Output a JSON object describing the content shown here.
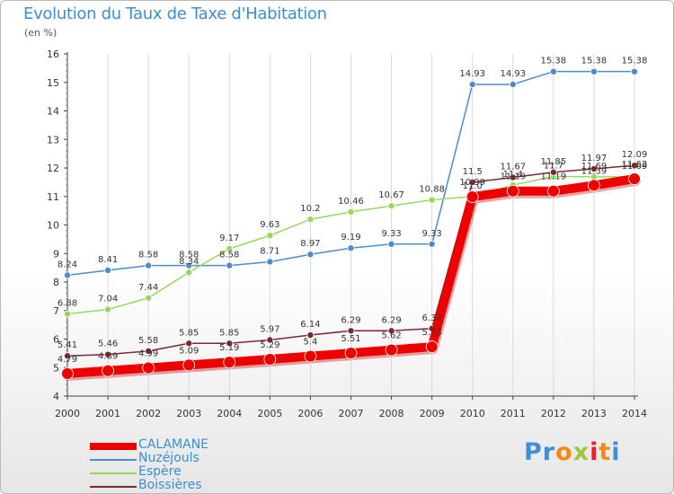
{
  "chart_title": "Evolution du Taux de Taxe d'Habitation",
  "unit_label": "(en %)",
  "logo": {
    "text": "Proxiti",
    "letters": [
      "P",
      "r",
      "o",
      "x",
      "i",
      "t",
      "i"
    ],
    "colors": [
      "#3f8fd6",
      "#3f8fd6",
      "#f28a1a",
      "#a0c53a",
      "#e8222a",
      "#f28a1a",
      "#3f8fd6"
    ]
  },
  "chart_data": {
    "type": "line",
    "title": "Evolution du Taux de Taxe d'Habitation",
    "ylabel": "(en %)",
    "xlabel": "",
    "x": [
      "2000",
      "2001",
      "2002",
      "2003",
      "2004",
      "2005",
      "2006",
      "2007",
      "2008",
      "2009",
      "2010",
      "2011",
      "2012",
      "2013",
      "2014"
    ],
    "ylim": [
      4,
      16
    ],
    "yticks": [
      "4",
      "5",
      "6",
      "7",
      "8",
      "9",
      "10",
      "11",
      "12",
      "13",
      "14",
      "15",
      "16"
    ],
    "grid": "vertical",
    "legend_position": "bottom-left",
    "series": [
      {
        "name": "CALAMANE",
        "color": "#ee0000",
        "values": [
          4.79,
          4.89,
          4.99,
          5.09,
          5.19,
          5.29,
          5.4,
          5.51,
          5.62,
          5.73,
          10.99,
          11.19,
          11.19,
          11.39,
          11.62
        ],
        "labels": [
          "4.79",
          "4.89",
          "4.99",
          "5.09",
          "5.19",
          "5.29",
          "5.4",
          "5.51",
          "5.62",
          "5.73",
          "10.99",
          "11.19",
          "11.19",
          "11.39",
          "11.62"
        ]
      },
      {
        "name": "Nuzéjouls",
        "color": "#4b8ccf",
        "values": [
          8.24,
          8.41,
          8.58,
          8.58,
          8.58,
          8.71,
          8.97,
          9.19,
          9.33,
          9.33,
          14.93,
          14.93,
          15.38,
          15.38,
          15.38
        ],
        "labels": [
          "8.24",
          "8.41",
          "8.58",
          "8.58",
          "8.58",
          "8.71",
          "8.97",
          "9.19",
          "9.33",
          "9.33",
          "14.93",
          "14.93",
          "15.38",
          "15.38",
          "15.38"
        ]
      },
      {
        "name": "Espère",
        "color": "#97d85a",
        "values": [
          6.88,
          7.04,
          7.44,
          8.34,
          9.17,
          9.63,
          10.2,
          10.46,
          10.67,
          10.88,
          11.0,
          11.4,
          11.7,
          11.69,
          11.69
        ],
        "labels": [
          "6.88",
          "7.04",
          "7.44",
          "8.34",
          "9.17",
          "9.63",
          "10.2",
          "10.46",
          "10.67",
          "10.88",
          "11.0",
          "11.4",
          "11.7",
          "11.69",
          "11.69"
        ]
      },
      {
        "name": "Boissières",
        "color": "#7a2a2e",
        "values": [
          5.41,
          5.46,
          5.58,
          5.85,
          5.85,
          5.97,
          6.14,
          6.29,
          6.29,
          6.37,
          11.5,
          11.67,
          11.85,
          11.97,
          12.09
        ],
        "labels": [
          "5.41",
          "5.46",
          "5.58",
          "5.85",
          "5.85",
          "5.97",
          "6.14",
          "6.29",
          "6.29",
          "6.37",
          "11.5",
          "11.67",
          "11.85",
          "11.97",
          "12.09"
        ]
      }
    ]
  }
}
